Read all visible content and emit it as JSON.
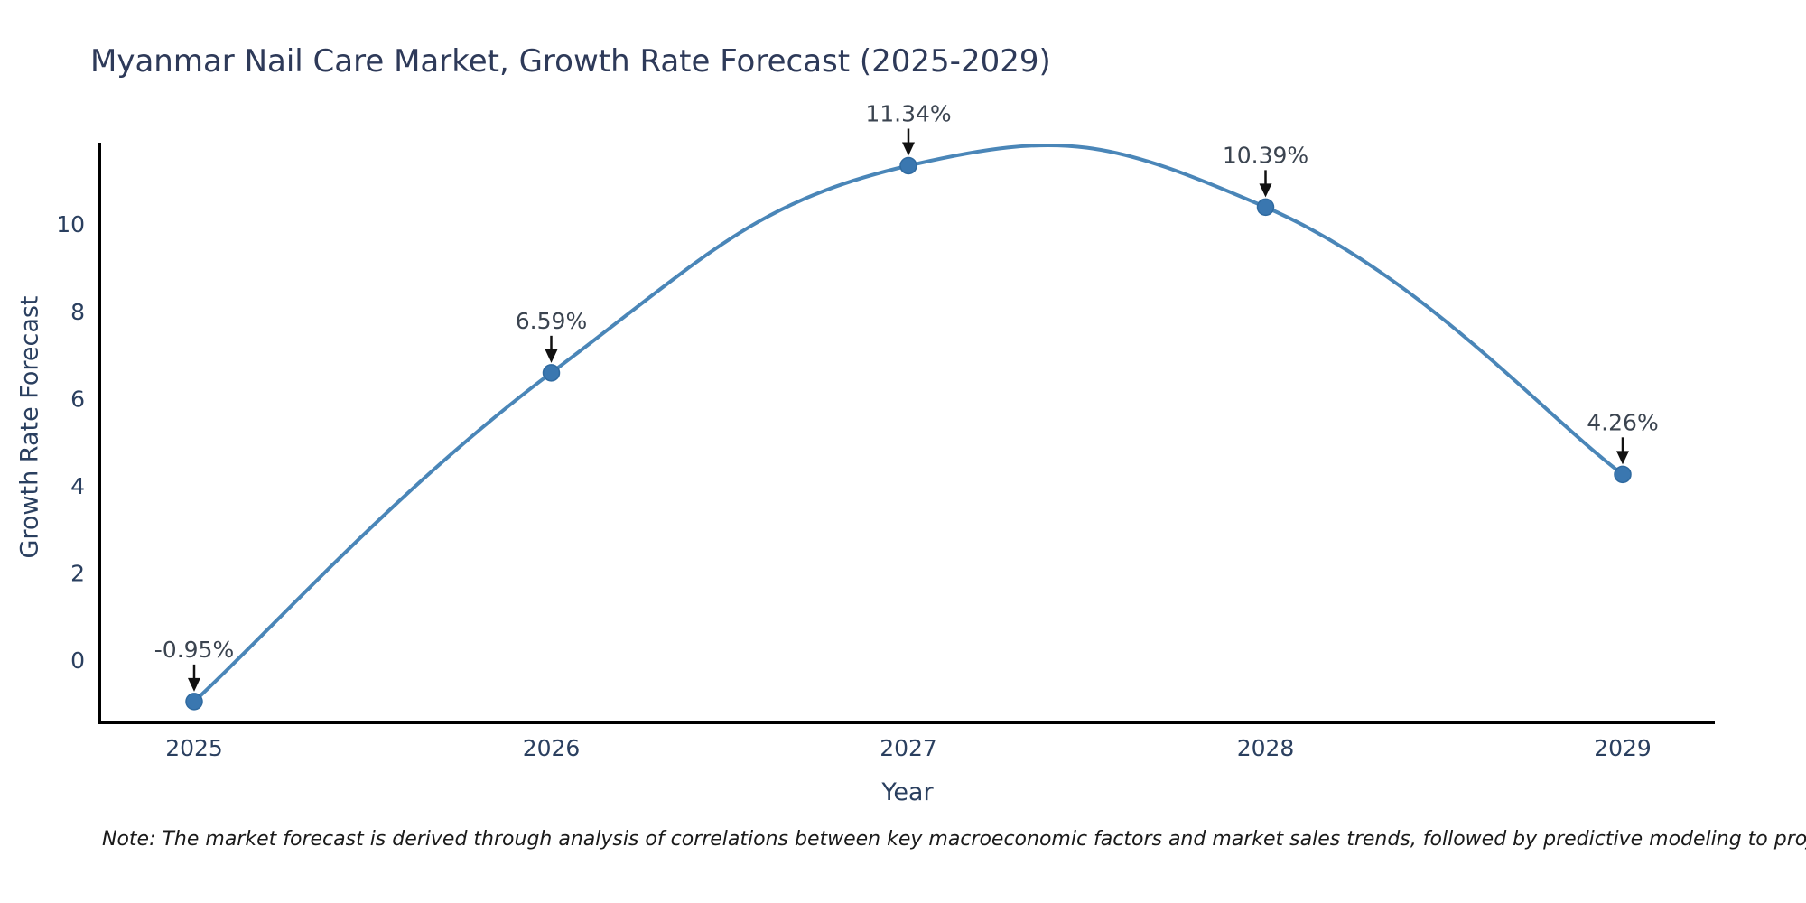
{
  "chart_data": {
    "type": "line",
    "line_shape": "spline",
    "title": "Myanmar Nail Care Market, Growth Rate Forecast (2025-2029)",
    "xlabel": "Year",
    "ylabel": "Growth Rate Forecast",
    "x": [
      2025,
      2026,
      2027,
      2028,
      2029
    ],
    "xtick_labels": [
      "2025",
      "2026",
      "2027",
      "2028",
      "2029"
    ],
    "series": [
      {
        "name": "Growth Rate Forecast",
        "values": [
          -0.95,
          6.59,
          11.34,
          10.39,
          4.26
        ]
      }
    ],
    "point_labels": [
      "-0.95%",
      "6.59%",
      "11.34%",
      "10.39%",
      "4.26%"
    ],
    "yticks": [
      0,
      2,
      4,
      6,
      8,
      10
    ],
    "ylim": [
      -1.43,
      11.93
    ],
    "xlim": [
      2024.73,
      2029.26
    ],
    "grid": false,
    "legend": "none",
    "annotation_style": "text above point with downward black arrow",
    "colors": {
      "line": "#4a86b8",
      "marker": "#3a77b0",
      "marker_edge": "#2f6aa0",
      "axis": "#000000",
      "text": "#2a3f5f",
      "annotation_text": "#3b4450",
      "arrow": "#111111",
      "background": "#ffffff"
    }
  },
  "note": "Note: The market forecast is derived through analysis of correlations between key macroeconomic factors and market sales trends, followed by predictive modeling to project future sales."
}
